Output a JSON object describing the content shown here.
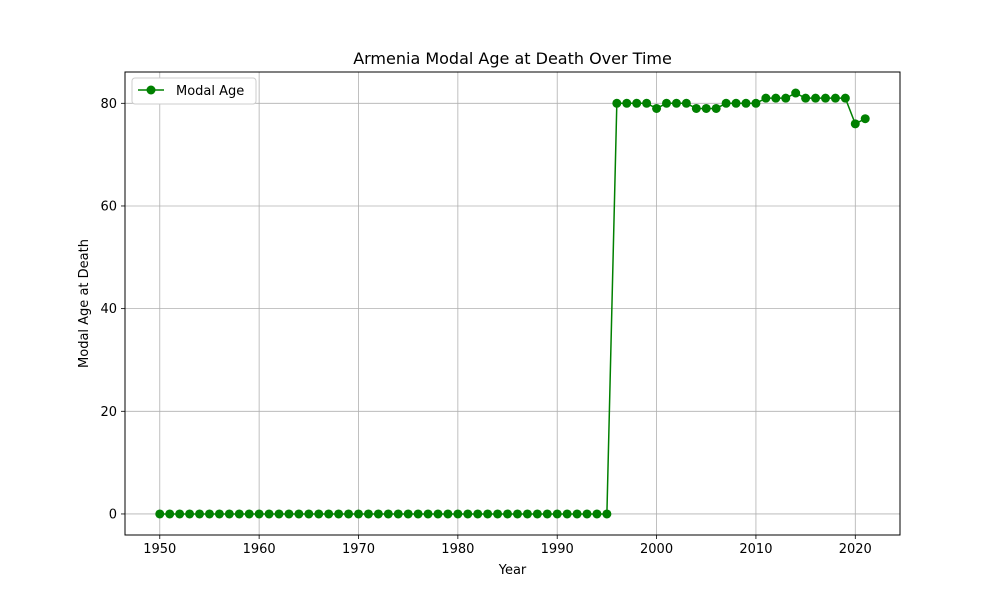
{
  "chart_data": {
    "type": "line",
    "title": "Armenia Modal Age at Death Over Time",
    "xlabel": "Year",
    "ylabel": "Modal Age at Death",
    "xlim": [
      1946.5,
      2024.5
    ],
    "ylim": [
      -4.1,
      86.1
    ],
    "xticks": [
      1950,
      1960,
      1970,
      1980,
      1990,
      2000,
      2010,
      2020
    ],
    "yticks": [
      0,
      20,
      40,
      60,
      80
    ],
    "grid": true,
    "legend_position": "top-left",
    "series": [
      {
        "name": "Modal Age",
        "color": "#008000",
        "marker": "circle",
        "x": [
          1950,
          1951,
          1952,
          1953,
          1954,
          1955,
          1956,
          1957,
          1958,
          1959,
          1960,
          1961,
          1962,
          1963,
          1964,
          1965,
          1966,
          1967,
          1968,
          1969,
          1970,
          1971,
          1972,
          1973,
          1974,
          1975,
          1976,
          1977,
          1978,
          1979,
          1980,
          1981,
          1982,
          1983,
          1984,
          1985,
          1986,
          1987,
          1988,
          1989,
          1990,
          1991,
          1992,
          1993,
          1994,
          1995,
          1996,
          1997,
          1998,
          1999,
          2000,
          2001,
          2002,
          2003,
          2004,
          2005,
          2006,
          2007,
          2008,
          2009,
          2010,
          2011,
          2012,
          2013,
          2014,
          2015,
          2016,
          2017,
          2018,
          2019,
          2020,
          2021
        ],
        "values": [
          0,
          0,
          0,
          0,
          0,
          0,
          0,
          0,
          0,
          0,
          0,
          0,
          0,
          0,
          0,
          0,
          0,
          0,
          0,
          0,
          0,
          0,
          0,
          0,
          0,
          0,
          0,
          0,
          0,
          0,
          0,
          0,
          0,
          0,
          0,
          0,
          0,
          0,
          0,
          0,
          0,
          0,
          0,
          0,
          0,
          0,
          80,
          80,
          80,
          80,
          79,
          80,
          80,
          80,
          79,
          79,
          79,
          80,
          80,
          80,
          80,
          81,
          81,
          81,
          82,
          81,
          81,
          81,
          81,
          81,
          76,
          77
        ]
      }
    ]
  }
}
